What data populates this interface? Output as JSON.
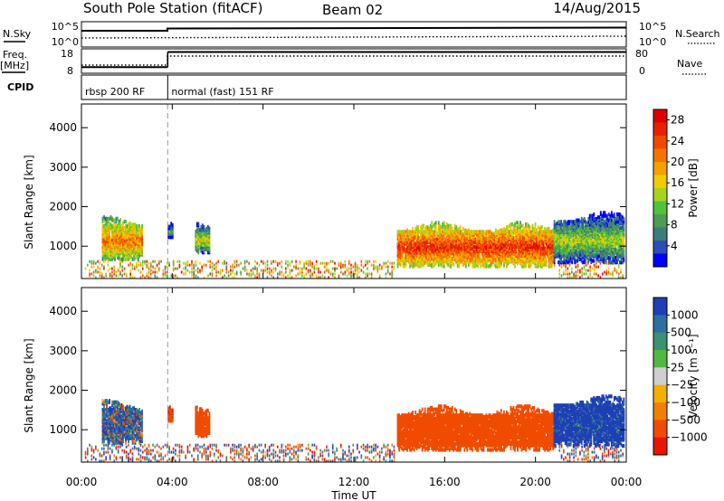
{
  "header": {
    "station": "South Pole Station (fitACF)",
    "beam": "Beam 02",
    "date": "14/Aug/2015"
  },
  "strip": {
    "nsky_label": "N.Sky",
    "nsky_ticks": [
      "10^5",
      "10^0"
    ],
    "nsearch_label": "N.Search",
    "nsearch_ticks": [
      "10^5",
      "10^0"
    ],
    "freq_label_1": "Freq.",
    "freq_label_2": "[MHz]",
    "freq_ticks": [
      "18",
      "8"
    ],
    "nave_label": "Nave",
    "nave_ticks": [
      "80",
      "0"
    ],
    "cpid_label": "CPID",
    "cpid_segments": [
      {
        "label": "rbsp 200 RF",
        "start_h": 0,
        "end_h": 3.8
      },
      {
        "label": "normal (fast) 151 RF",
        "start_h": 3.8,
        "end_h": 24
      }
    ],
    "freq_mhz": [
      {
        "start_h": 0,
        "end_h": 3.8,
        "value": 10.5
      },
      {
        "start_h": 3.8,
        "end_h": 24,
        "value": 16.7
      }
    ]
  },
  "chart_data": [
    {
      "type": "heatmap",
      "title": "",
      "xlabel": "Time UT",
      "ylabel": "Slant Range [km]",
      "xlim_hours": [
        0,
        24
      ],
      "ylim_km": [
        180,
        4600
      ],
      "x_ticks": [
        "00:00",
        "04:00",
        "08:00",
        "12:00",
        "16:00",
        "20:00",
        "00:00"
      ],
      "y_ticks": [
        1000,
        2000,
        3000,
        4000
      ],
      "colorbar": {
        "label": "Power [dB]",
        "ticks": [
          "4",
          "8",
          "12",
          "16",
          "20",
          "24",
          "28"
        ],
        "colors": [
          "#0000ff",
          "#2b4fb8",
          "#3a7e7a",
          "#4f9a56",
          "#52c23a",
          "#a8d21f",
          "#f0cc00",
          "#f5a100",
          "#f57400",
          "#f04a00",
          "#e82000",
          "#e00000"
        ]
      },
      "echo_regions": [
        {
          "t0": 0.9,
          "t1": 2.7,
          "r0": 680,
          "r1": 1650,
          "mean": 22
        },
        {
          "t0": 3.8,
          "t1": 4.0,
          "r0": 1200,
          "r1": 1550,
          "mean": 10
        },
        {
          "t0": 5.0,
          "t1": 5.6,
          "r0": 850,
          "r1": 1500,
          "mean": 16
        },
        {
          "t0": 13.9,
          "t1": 20.8,
          "r0": 500,
          "r1": 1500,
          "mean": 26
        },
        {
          "t0": 20.8,
          "t1": 23.9,
          "r0": 600,
          "r1": 1750,
          "mean": 14
        }
      ],
      "near_range": {
        "r0": 200,
        "r1": 650,
        "mean": 18
      }
    },
    {
      "type": "heatmap",
      "title": "",
      "xlabel": "Time UT",
      "ylabel": "Slant Range [km]",
      "xlim_hours": [
        0,
        24
      ],
      "ylim_km": [
        180,
        4600
      ],
      "x_ticks": [
        "00:00",
        "04:00",
        "08:00",
        "12:00",
        "16:00",
        "20:00",
        "00:00"
      ],
      "y_ticks": [
        1000,
        2000,
        3000,
        4000
      ],
      "colorbar": {
        "label": "Velocity [m s⁻¹]",
        "ticks": [
          "1000",
          "500",
          "100",
          "25",
          "−25",
          "−100",
          "−500",
          "−1000"
        ],
        "colors": [
          "#1f3fb5",
          "#2e6ea0",
          "#3f8f72",
          "#52b844",
          "#cfcfcf",
          "#f2b000",
          "#f08000",
          "#f04c00",
          "#e81500"
        ]
      },
      "echo_regions": [
        {
          "t0": 0.9,
          "t1": 2.7,
          "r0": 680,
          "r1": 1650,
          "mean": 150
        },
        {
          "t0": 3.8,
          "t1": 4.0,
          "r0": 1200,
          "r1": 1550,
          "mean": -200
        },
        {
          "t0": 5.0,
          "t1": 5.6,
          "r0": 850,
          "r1": 1500,
          "mean": -150
        },
        {
          "t0": 13.9,
          "t1": 20.8,
          "r0": 500,
          "r1": 1500,
          "mean": -120
        },
        {
          "t0": 20.8,
          "t1": 23.9,
          "r0": 600,
          "r1": 1750,
          "mean": 600
        }
      ],
      "near_range": {
        "r0": 200,
        "r1": 650,
        "mean": 0
      }
    }
  ]
}
